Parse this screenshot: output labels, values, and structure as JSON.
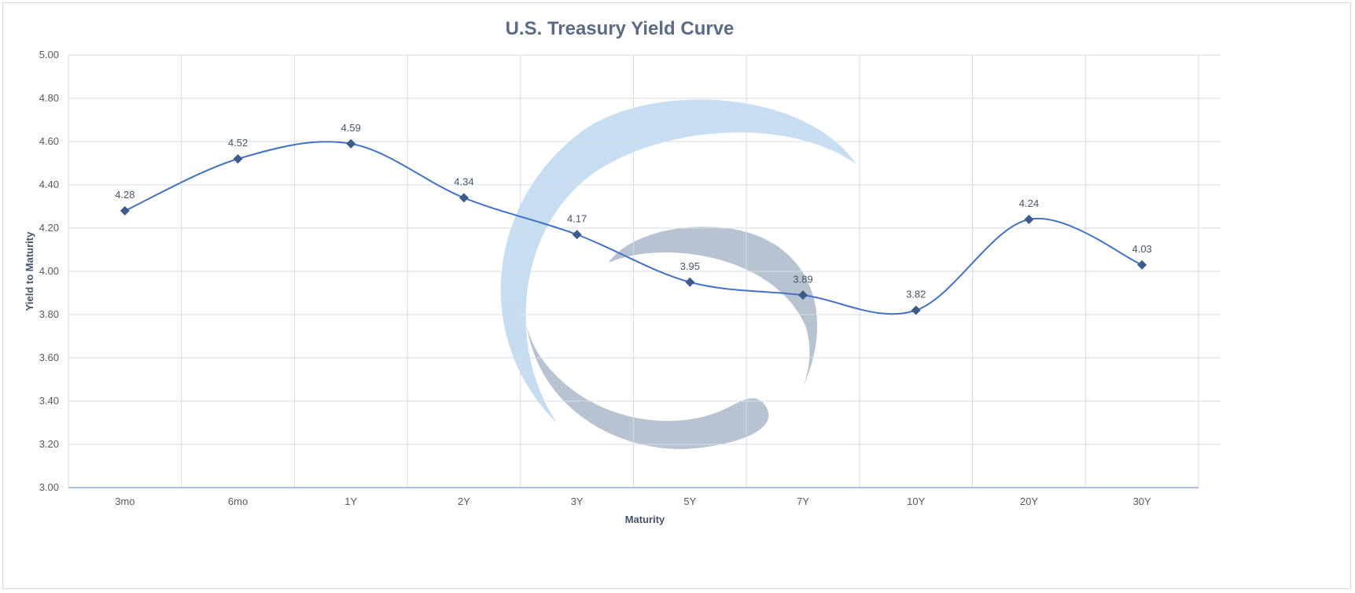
{
  "chart_data": {
    "type": "line",
    "title": "U.S. Treasury Yield Curve",
    "xlabel": "Maturity",
    "ylabel": "Yield to Maturity",
    "categories": [
      "3mo",
      "6mo",
      "1Y",
      "2Y",
      "3Y",
      "5Y",
      "7Y",
      "10Y",
      "20Y",
      "30Y"
    ],
    "series": [
      {
        "values": [
          4.28,
          4.52,
          4.59,
          4.34,
          4.17,
          3.95,
          3.89,
          3.82,
          4.24,
          4.03
        ],
        "labels": [
          "4.28",
          "4.52",
          "4.59",
          "4.34",
          "4.17",
          "3.95",
          "3.89",
          "3.82",
          "4.24",
          "4.03"
        ],
        "color": "#4472c4",
        "marker_color": "#3e5b8a",
        "smooth": true,
        "marker": "diamond"
      }
    ],
    "ylim": [
      3.0,
      5.0
    ],
    "yticks": [
      "3.00",
      "3.20",
      "3.40",
      "3.60",
      "3.80",
      "4.00",
      "4.20",
      "4.40",
      "4.60",
      "4.80",
      "5.00"
    ],
    "grid": true,
    "legend": "none",
    "colors": {
      "grid": "#d6dce5",
      "axis": "#8eaadb",
      "watermark_blue": "#bdd7ee",
      "watermark_gray": "#acb9ca"
    }
  }
}
